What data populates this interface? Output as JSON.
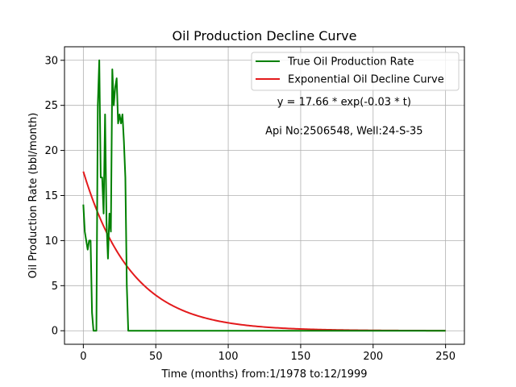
{
  "chart_data": {
    "type": "line",
    "title": "Oil Production Decline Curve",
    "xlabel": "Time (months) from:1/1978 to:12/1999",
    "ylabel": "Oil Production Rate (bbl/month)",
    "xlim": [
      -13,
      263
    ],
    "ylim": [
      -1.5,
      31.5
    ],
    "xticks": [
      0,
      50,
      100,
      150,
      200,
      250
    ],
    "yticks": [
      0,
      5,
      10,
      15,
      20,
      25,
      30
    ],
    "grid": true,
    "legend": {
      "position": "top-right"
    },
    "series": [
      {
        "name": "True Oil Production Rate",
        "color": "#008000",
        "x": [
          0,
          1,
          2,
          3,
          4,
          5,
          6,
          7,
          8,
          9,
          10,
          11,
          12,
          13,
          14,
          15,
          16,
          17,
          18,
          19,
          20,
          21,
          22,
          23,
          24,
          25,
          26,
          27,
          28,
          29,
          30,
          31,
          50,
          100,
          150,
          200,
          250
        ],
        "y": [
          14,
          11,
          10,
          9,
          10,
          10,
          2,
          0,
          0,
          0,
          25,
          30,
          17,
          17,
          13,
          24,
          12,
          8,
          13,
          11,
          29,
          25,
          27,
          28,
          23,
          24,
          23,
          24,
          21,
          17,
          5,
          0,
          0,
          0,
          0,
          0,
          0
        ]
      },
      {
        "name": "Exponential Oil Decline Curve",
        "color": "#e31a1c",
        "equation": {
          "a": 17.66,
          "b": 0.03,
          "x_start": 0,
          "x_end": 250
        }
      }
    ],
    "annotations": [
      {
        "text": "y = 17.66 * exp(-0.03 * t)",
        "x": 180,
        "y": 25
      },
      {
        "text": "Api No:2506548, Well:24-S-35",
        "x": 180,
        "y": 21.8
      }
    ]
  }
}
